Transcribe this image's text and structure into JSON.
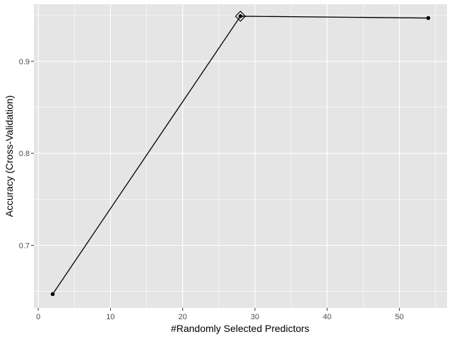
{
  "chart_data": {
    "type": "line",
    "xlabel": "#Randomly Selected Predictors",
    "ylabel": "Accuracy (Cross-Validation)",
    "x": [
      2,
      28,
      54
    ],
    "series": [
      {
        "values": [
          0.647,
          0.949,
          0.947
        ]
      }
    ],
    "highlight": {
      "x": 28,
      "y": 0.949,
      "marker": "diamond"
    },
    "xlim": [
      -0.6,
      56.6
    ],
    "ylim": [
      0.632,
      0.962
    ],
    "x_ticks": [
      0,
      10,
      20,
      30,
      40,
      50
    ],
    "y_ticks": [
      0.7,
      0.8,
      0.9
    ],
    "x_tick_labels": [
      "0",
      "10",
      "20",
      "30",
      "40",
      "50"
    ],
    "y_tick_labels": [
      "0.7",
      "0.8",
      "0.9"
    ],
    "x_minor_ticks": [
      5,
      15,
      25,
      35,
      45,
      55
    ],
    "y_minor_ticks": [
      0.65,
      0.75,
      0.85,
      0.95
    ],
    "grid": true,
    "panel_background": "#e5e5e5",
    "grid_color": "#ffffff",
    "line_color": "#000000"
  }
}
